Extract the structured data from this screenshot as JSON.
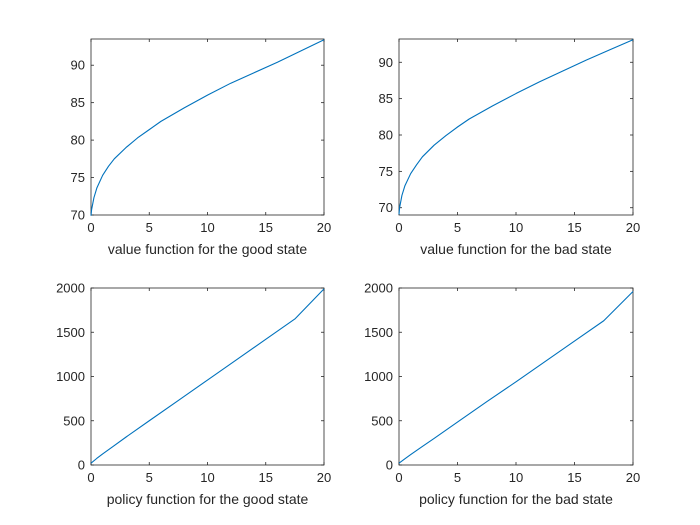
{
  "chart_data": [
    {
      "type": "line",
      "xlabel": "value function for the good state",
      "ylabel": "",
      "xlim": [
        0,
        20
      ],
      "ylim": [
        70,
        93.5
      ],
      "xticks": [
        0,
        5,
        10,
        15,
        20
      ],
      "yticks": [
        70,
        75,
        80,
        85,
        90
      ],
      "grid": false,
      "color": "#0072BD",
      "series": [
        {
          "x": [
            0,
            0.05,
            0.25,
            0.5,
            1,
            1.5,
            2,
            3,
            4,
            5,
            6,
            8,
            10,
            12,
            14,
            16,
            18,
            20
          ],
          "y": [
            69.9,
            70.7,
            72.3,
            73.6,
            75.3,
            76.5,
            77.5,
            79.0,
            80.3,
            81.4,
            82.5,
            84.3,
            86.0,
            87.6,
            89.0,
            90.4,
            91.9,
            93.4
          ]
        }
      ]
    },
    {
      "type": "line",
      "xlabel": "value function for the bad state",
      "ylabel": "",
      "xlim": [
        0,
        20
      ],
      "ylim": [
        69,
        93.2
      ],
      "xticks": [
        0,
        5,
        10,
        15,
        20
      ],
      "yticks": [
        70,
        75,
        80,
        85,
        90
      ],
      "grid": false,
      "color": "#0072BD",
      "series": [
        {
          "x": [
            0,
            0.05,
            0.25,
            0.5,
            1,
            1.5,
            2,
            3,
            4,
            5,
            6,
            8,
            10,
            12,
            14,
            16,
            18,
            20
          ],
          "y": [
            69.1,
            70.0,
            71.7,
            73.0,
            74.7,
            75.9,
            77.0,
            78.6,
            79.9,
            81.1,
            82.2,
            84.0,
            85.7,
            87.3,
            88.8,
            90.3,
            91.7,
            93.1
          ]
        }
      ]
    },
    {
      "type": "line",
      "xlabel": "policy function for the good state",
      "ylabel": "",
      "xlim": [
        0,
        20
      ],
      "ylim": [
        0,
        2000
      ],
      "xticks": [
        0,
        5,
        10,
        15,
        20
      ],
      "yticks": [
        0,
        500,
        1000,
        1500,
        2000
      ],
      "grid": false,
      "color": "#0072BD",
      "series": [
        {
          "x": [
            0,
            0.5,
            1,
            2,
            3,
            5,
            7.5,
            10,
            12.5,
            15,
            17.5,
            20
          ],
          "y": [
            20,
            75,
            125,
            220,
            315,
            500,
            730,
            960,
            1190,
            1420,
            1650,
            1990
          ]
        }
      ]
    },
    {
      "type": "line",
      "xlabel": "policy function for the bad state",
      "ylabel": "",
      "xlim": [
        0,
        20
      ],
      "ylim": [
        0,
        2000
      ],
      "xticks": [
        0,
        5,
        10,
        15,
        20
      ],
      "yticks": [
        0,
        500,
        1000,
        1500,
        2000
      ],
      "grid": false,
      "color": "#0072BD",
      "series": [
        {
          "x": [
            0,
            0.5,
            1,
            2,
            3,
            5,
            7.5,
            10,
            12.5,
            15,
            17.5,
            20
          ],
          "y": [
            20,
            70,
            118,
            210,
            300,
            485,
            715,
            940,
            1170,
            1400,
            1630,
            1960
          ]
        }
      ]
    }
  ]
}
